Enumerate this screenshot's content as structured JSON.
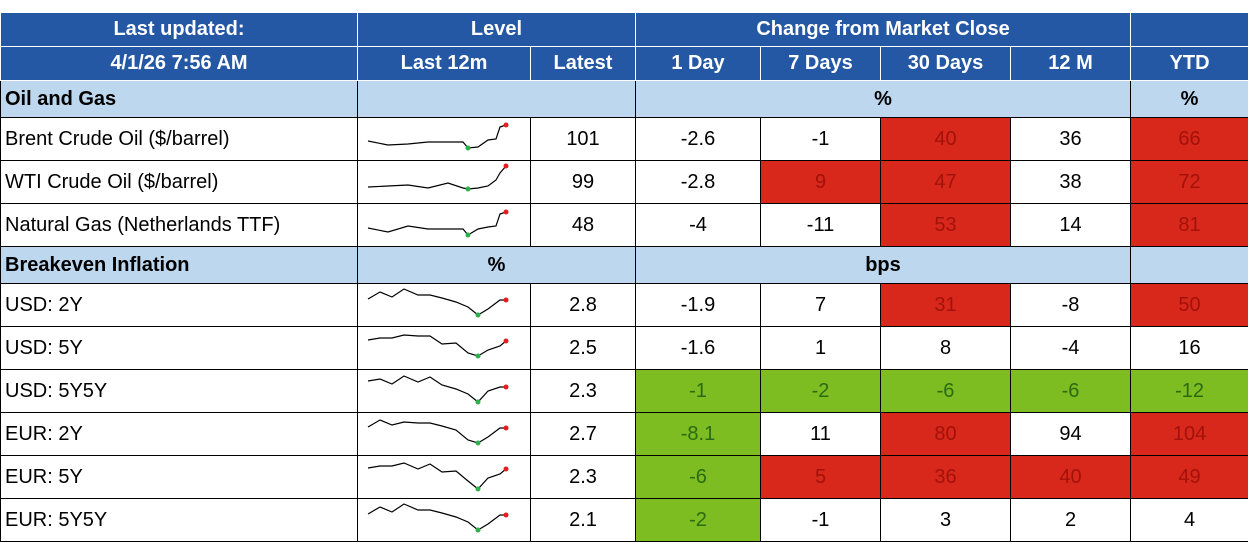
{
  "header": {
    "row1": [
      "Last updated:",
      "Level",
      "Change from Market Close"
    ],
    "row2": [
      "4/1/26 7:56 AM",
      "Last 12m",
      "Latest",
      "1 Day",
      "7 Days",
      "30 Days",
      "12 M",
      "YTD"
    ]
  },
  "highlight_colors": {
    "red": "#d8281c",
    "green": "#7dbd22"
  },
  "sections": [
    {
      "title": "Oil and Gas",
      "change_unit": "%",
      "ytd_unit": "%",
      "rows": [
        {
          "name": "Brent Crude Oil ($/barrel)",
          "latest": 101,
          "changes": [
            -2.6,
            -1,
            40,
            36,
            66
          ],
          "highlights": [
            null,
            null,
            "red",
            null,
            "red"
          ]
        },
        {
          "name": "WTI Crude Oil ($/barrel)",
          "latest": 99,
          "changes": [
            -2.8,
            9,
            47,
            38,
            72
          ],
          "highlights": [
            null,
            "red",
            "red",
            null,
            "red"
          ]
        },
        {
          "name": "Natural Gas (Netherlands TTF)",
          "latest": 48,
          "changes": [
            -4,
            -11,
            53,
            14,
            81
          ],
          "highlights": [
            null,
            null,
            "red",
            null,
            "red"
          ]
        }
      ]
    },
    {
      "title": "Breakeven Inflation",
      "level_unit": "%",
      "change_unit": "bps",
      "rows": [
        {
          "name": "USD: 2Y",
          "latest": 2.8,
          "changes": [
            -1.9,
            7,
            31,
            -8,
            50
          ],
          "highlights": [
            null,
            null,
            "red",
            null,
            "red"
          ]
        },
        {
          "name": "USD: 5Y",
          "latest": 2.5,
          "changes": [
            -1.6,
            1,
            8,
            -4,
            16
          ],
          "highlights": [
            null,
            null,
            null,
            null,
            null
          ]
        },
        {
          "name": "USD: 5Y5Y",
          "latest": 2.3,
          "changes": [
            -1,
            -2,
            -6,
            -6,
            -12
          ],
          "highlights": [
            "green",
            "green",
            "green",
            "green",
            "green"
          ]
        },
        {
          "name": "EUR: 2Y",
          "latest": 2.7,
          "changes": [
            -8.1,
            11,
            80,
            94,
            104
          ],
          "highlights": [
            "green",
            null,
            "red",
            null,
            "red"
          ]
        },
        {
          "name": "EUR: 5Y",
          "latest": 2.3,
          "changes": [
            -6,
            5,
            36,
            40,
            49
          ],
          "highlights": [
            "green",
            "red",
            "red",
            "red",
            "red"
          ]
        },
        {
          "name": "EUR: 5Y5Y",
          "latest": 2.1,
          "changes": [
            -2,
            -1,
            3,
            2,
            4
          ],
          "highlights": [
            "green",
            null,
            null,
            null,
            null
          ]
        }
      ]
    }
  ]
}
